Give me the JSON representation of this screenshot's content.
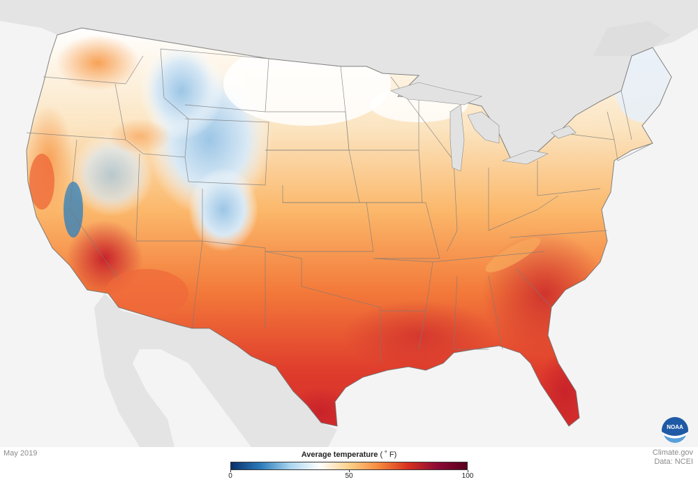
{
  "map": {
    "variable": "Average temperature",
    "unit": "( ˚ F)",
    "period": "May 2019"
  },
  "legend": {
    "title": "Average temperature",
    "unit": "( ˚ F)",
    "range": [
      0,
      100
    ],
    "ticks": [
      {
        "value": 0,
        "label": "0"
      },
      {
        "value": 50,
        "label": "50"
      },
      {
        "value": 100,
        "label": "100"
      }
    ],
    "colors": [
      "#08306b",
      "#2b7bba",
      "#a9d4ee",
      "#ffffff",
      "#fdd08a",
      "#f58a3d",
      "#d7301f",
      "#8c0a35",
      "#5a0020"
    ]
  },
  "credit": {
    "source": "Climate.gov",
    "data": "Data: NCEI"
  },
  "logo": {
    "text": "NOAA",
    "icon": "noaa-logo-icon"
  },
  "colors": {
    "background": "#f4f4f4",
    "land_outside": "#e6e6e6",
    "border": "#777777"
  }
}
